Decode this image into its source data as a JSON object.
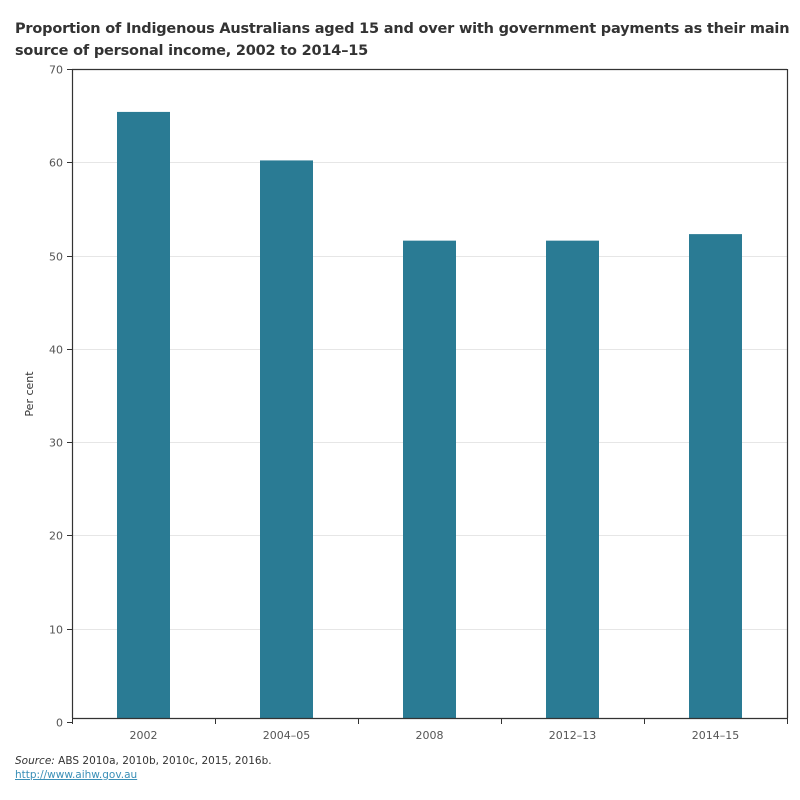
{
  "chart_data": {
    "type": "bar",
    "title": "Proportion of Indigenous Australians aged 15 and over with government payments as their main source of personal income, 2002 to 2014–15",
    "xlabel": "",
    "ylabel": "Per cent",
    "categories": [
      "2002",
      "2004–05",
      "2008",
      "2012–13",
      "2014–15"
    ],
    "values": [
      65.4,
      60.2,
      51.6,
      51.6,
      52.3
    ],
    "ylim": [
      0,
      70
    ],
    "yticks": [
      0,
      10,
      20,
      30,
      40,
      50,
      60,
      70
    ],
    "grid": true,
    "legend": "none",
    "bar_color": "#2a7b94"
  },
  "footer": {
    "source_label": "Source:",
    "source_text": " ABS 2010a, 2010b, 2010c, 2015, 2016b.",
    "link_text": "http://www.aihw.gov.au"
  }
}
